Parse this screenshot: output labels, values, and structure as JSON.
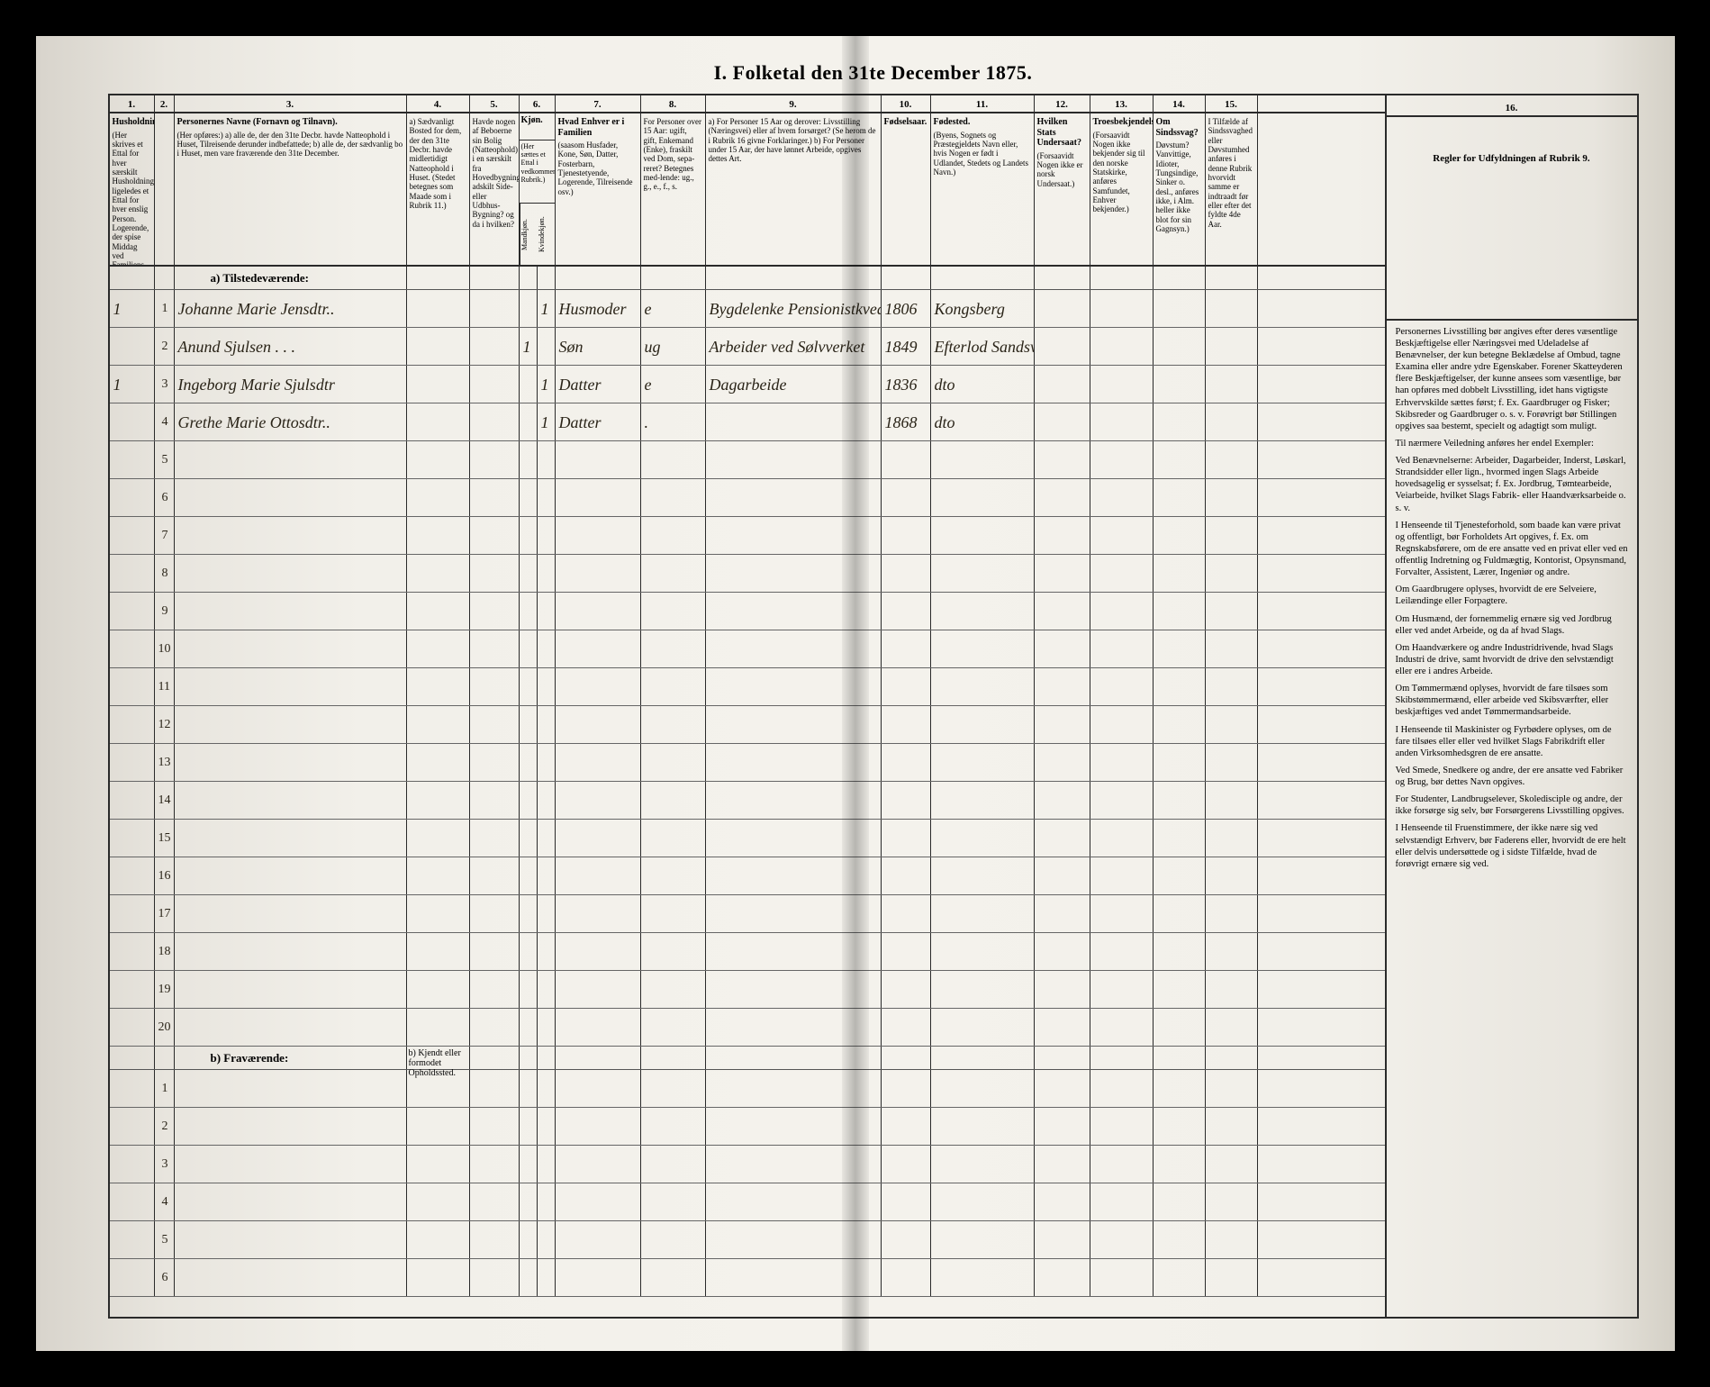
{
  "document": {
    "title": "I. Folketal den 31te December 1875.",
    "column_numbers": [
      "1.",
      "2.",
      "3.",
      "4.",
      "5.",
      "6.",
      "7.",
      "8.",
      "9.",
      "10.",
      "11.",
      "12.",
      "13.",
      "14.",
      "15.",
      "16."
    ],
    "columns": {
      "c1": {
        "title": "Husholdninger.",
        "text": "(Her skrives et Ettal for hver særskilt Husholdning, ligeledes et Ettal for hver enslig Person. Logerende, der spise Middag ved Familiens Bord, regnes som enlige.)"
      },
      "c2": {
        "title": "",
        "text": ""
      },
      "c3": {
        "title": "Personernes Navne (Fornavn og Tilnavn).",
        "text": "(Her opføres:) a) alle de, der den 31te Decbr. havde Natteophold i Huset, Tilreisende derunder indbefattede; b) alle de, der sædvanlig bo i Huset, men vare fraværende den 31te December."
      },
      "c4": {
        "title": "",
        "text": "a) Sædvanligt Bosted for dem, der den 31te Decbr. havde midlertidigt Natteophold i Huset. (Stedet betegnes som Maade som i Rubrik 11.)"
      },
      "c5": {
        "title": "",
        "text": "Havde nogen af Beboerne sin Bolig (Natteophold) i en særskilt fra Hovedbygningen adskilt Side- eller Udbhus-Bygning? og da i hvilken?"
      },
      "c6": {
        "title": "Kjøn.",
        "text": "(Her sættes et Ettal i vedkommende Rubrik.)",
        "sub_a": "Mandkjøn.",
        "sub_b": "Kvindekjøn."
      },
      "c7": {
        "title": "Hvad Enhver er i Familien",
        "text": "(saasom Husfader, Kone, Søn, Datter, Fosterbarn, Tjenestetyende, Logerende, Tilreisende osv.)"
      },
      "c8": {
        "title": "",
        "text": "For Personer over 15 Aar: ugift, gift, Enkemand (Enke), fraskilt ved Dom, sepa-reret? Betegnes med-lende: ug., g., e., f., s."
      },
      "c9": {
        "title": "",
        "text": "a) For Personer 15 Aar og derover: Livsstilling (Næringsvei) eller af hvem forsørget? (Se herom de i Rubrik 16 givne Forklaringer.) b) For Personer under 15 Aar, der have lønnet Arbeide, opgives dettes Art."
      },
      "c10": {
        "title": "Fødselsaar.",
        "text": ""
      },
      "c11": {
        "title": "Fødested.",
        "text": "(Byens, Sognets og Præstegjeldets Navn eller, hvis Nogen er født i Udlandet, Stedets og Landets Navn.)"
      },
      "c12": {
        "title": "Hvilken Stats Undersaat?",
        "text": "(Forsaavidt Nogen ikke er norsk Undersaat.)"
      },
      "c13": {
        "title": "Troesbekjendelse.",
        "text": "(Forsaavidt Nogen ikke bekjender sig til den norske Statskirke, anføres Samfundet, Enhver bekjender.)"
      },
      "c14": {
        "title": "Om Sindssvag?",
        "text": "Døvstum? Vanvittige, Idioter, Tungsindige, Sinker o. desl., anføres ikke, i Alm. heller ikke blot for sin Gagnsyn.)"
      },
      "c15": {
        "title": "",
        "text": "I Tilfælde af Sindssvaghed eller Døvstumhed anføres i denne Rubrik hvorvidt samme er indtraadt før eller efter det fyldte 4de Aar."
      },
      "c16": {
        "title": "Regler for Udfyldningen af Rubrik 9."
      }
    },
    "sections": {
      "a": "a) Tilstedeværende:",
      "b": "b) Fraværende:",
      "b_sub": "b) Kjendt eller formodet Opholdssted."
    },
    "entries_a": [
      {
        "hh": "1",
        "pn": "1",
        "name": "Johanne Marie Jensdtr..",
        "c4": "",
        "c5": "",
        "m": "",
        "k": "1",
        "rel": "Husmoder",
        "civ": "e",
        "occ": "Bygdelenke Pensionistkved Kongsb",
        "year": "1806",
        "birthplace": "Kongsberg"
      },
      {
        "hh": "",
        "pn": "2",
        "name": "Anund Sjulsen . . .",
        "c4": "",
        "c5": "",
        "m": "1",
        "k": "",
        "rel": "Søn",
        "civ": "ug",
        "occ": "Arbeider ved Sølvverket",
        "year": "1849",
        "birthplace": "Efterlod Sandsvær"
      },
      {
        "hh": "1",
        "pn": "3",
        "name": "Ingeborg Marie Sjulsdtr",
        "c4": "",
        "c5": "",
        "m": "",
        "k": "1",
        "rel": "Datter",
        "civ": "e",
        "occ": "Dagarbeide",
        "year": "1836",
        "birthplace": "dto"
      },
      {
        "hh": "",
        "pn": "4",
        "name": "Grethe Marie Ottosdtr..",
        "c4": "",
        "c5": "",
        "m": "",
        "k": "1",
        "rel": "Datter",
        "civ": ".",
        "occ": "",
        "year": "1868",
        "birthplace": "dto"
      }
    ],
    "empty_a_rows": [
      "5",
      "6",
      "7",
      "8",
      "9",
      "10",
      "11",
      "12",
      "13",
      "14",
      "15",
      "16",
      "17",
      "18",
      "19",
      "20"
    ],
    "empty_b_rows": [
      "1",
      "2",
      "3",
      "4",
      "5",
      "6"
    ],
    "rules_text": [
      "Personernes Livsstilling bør angives efter deres væsentlige Beskjæftigelse eller Næringsvei med Udeladelse af Benævnelser, der kun betegne Beklædelse af Ombud, tagne Examina eller andre ydre Egenskaber. Forener Skatteyderen flere Beskjæftigelser, der kunne ansees som væsentlige, bør han opføres med dobbelt Livsstilling, idet hans vigtigste Erhvervskilde sættes først; f. Ex. Gaardbruger og Fisker; Skibsreder og Gaardbruger o. s. v. Forøvrigt bør Stillingen opgives saa bestemt, specielt og adagtigt som muligt.",
      "Til nærmere Veiledning anføres her endel Exempler:",
      "Ved Benævnelserne: Arbeider, Dagarbeider, Inderst, Løskarl, Strandsidder eller lign., hvormed ingen Slags Arbeide hovedsagelig er syssel­sat; f. Ex. Jordbrug, Tømte­arbeide, Veiarbeide, hvilket Slags Fabrik- eller Haandværksarbeide o. s. v.",
      "I Henseende til Tjenesteforhold, som baade kan være privat og offentligt, bør Forholdets Art opgives, f. Ex. om Regnskabsførere, om de ere ansatte ved en privat eller ved en offentlig Indretning og Fuldmægtig, Kontorist, Opsynsmand, Forvalter, Assistent, Lærer, Ingeniør og andre.",
      "Om Gaardbrugere oplyses, hvorvidt de ere Selveiere, Leilændinge eller Forpagtere.",
      "Om Husmænd, der fornemmelig ernære sig ved Jordbrug eller ved andet Arbeide, og da af hvad Slags.",
      "Om Haandværkere og andre Industridrivende, hvad Slags Industri de drive, samt hvorvidt de drive den selvstændigt eller ere i andres Arbeide.",
      "Om Tømmermænd oplyses, hvorvidt de fare tilsøes som Skibstømmermænd, eller arbeide ved Skibsværfter, eller beskjæftiges ved andet Tømmermandsarbeide.",
      "I Henseende til Maskinister og Fyrbødere oplyses, om de fare tilsøes eller eller ved hvilket Slags Fabrikdrift eller anden Virksomhedsgren de ere ansatte.",
      "Ved Smede, Snedkere og andre, der ere ansatte ved Fabriker og Brug, bør dettes Navn opgives.",
      "For Studenter, Landbrugselever, Skoledisciple og andre, der ikke forsørge sig selv, bør Forsørgerens Livsstilling opgives.",
      "I Henseende til Fruenstimmere, der ikke nære sig ved selvstændigt Erhverv, bør Faderens eller, hvorvidt de ere helt eller delvis undersøttede og i sidste Tilfælde, hvad de forøvrigt ernære sig ved."
    ]
  },
  "style": {
    "page_bg": "#f2f0ea",
    "border_color": "#2a2a2a",
    "handwriting_color": "#2a2418",
    "title_fontsize": 22,
    "header_fontsize": 9,
    "row_fontsize": 18,
    "rules_fontsize": 10.5
  }
}
